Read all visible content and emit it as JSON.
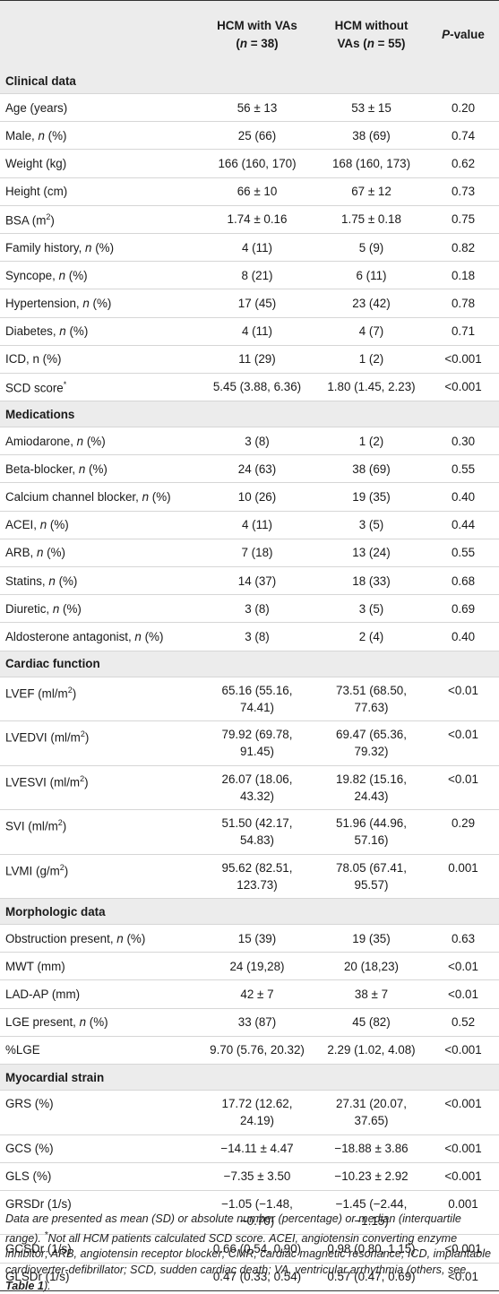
{
  "header": {
    "col1": "",
    "col2_line1": "HCM with VAs",
    "col2_line2_pre": "(",
    "col2_n": "n",
    "col2_line2_post": " = 38)",
    "col3_line1": "HCM without",
    "col3_line2_pre": "VAs (",
    "col3_n": "n",
    "col3_line2_post": " = 55)",
    "col4_p": "P",
    "col4_rest": "-value"
  },
  "sections": [
    {
      "title": "Clinical data",
      "rows": [
        {
          "label": "Age (years)",
          "a": "56 ± 13",
          "b": "53 ± 15",
          "p": "0.20"
        },
        {
          "label": "Male, ",
          "label_i": "n",
          "label_post": " (%)",
          "a": "25 (66)",
          "b": "38 (69)",
          "p": "0.74"
        },
        {
          "label": "Weight (kg)",
          "a": "166 (160, 170)",
          "b": "168 (160, 173)",
          "p": "0.62"
        },
        {
          "label": "Height (cm)",
          "a": "66 ± 10",
          "b": "67 ± 12",
          "p": "0.73"
        },
        {
          "label": "BSA (m",
          "label_sup": "2",
          "label_post": ")",
          "a": "1.74 ± 0.16",
          "b": "1.75 ± 0.18",
          "p": "0.75"
        },
        {
          "label": "Family history, ",
          "label_i": "n",
          "label_post": " (%)",
          "a": "4 (11)",
          "b": "5 (9)",
          "p": "0.82"
        },
        {
          "label": "Syncope, ",
          "label_i": "n",
          "label_post": " (%)",
          "a": "8 (21)",
          "b": "6 (11)",
          "p": "0.18"
        },
        {
          "label": "Hypertension, ",
          "label_i": "n",
          "label_post": " (%)",
          "a": "17 (45)",
          "b": "23 (42)",
          "p": "0.78"
        },
        {
          "label": "Diabetes, ",
          "label_i": "n",
          "label_post": " (%)",
          "a": "4 (11)",
          "b": "4 (7)",
          "p": "0.71"
        },
        {
          "label": "ICD, n (%)",
          "a": "11 (29)",
          "b": "1 (2)",
          "p": "<0.001"
        },
        {
          "label": "SCD score",
          "label_sup": "*",
          "a": "5.45 (3.88, 6.36)",
          "b": "1.80 (1.45, 2.23)",
          "p": "<0.001"
        }
      ]
    },
    {
      "title": "Medications",
      "rows": [
        {
          "label": "Amiodarone, ",
          "label_i": "n",
          "label_post": " (%)",
          "a": "3 (8)",
          "b": "1 (2)",
          "p": "0.30"
        },
        {
          "label": "Beta-blocker, ",
          "label_i": "n",
          "label_post": " (%)",
          "a": "24 (63)",
          "b": "38 (69)",
          "p": "0.55"
        },
        {
          "label": "Calcium channel blocker, ",
          "label_i": "n",
          "label_post": " (%)",
          "a": "10 (26)",
          "b": "19 (35)",
          "p": "0.40"
        },
        {
          "label": "ACEI, ",
          "label_i": "n",
          "label_post": " (%)",
          "a": "4 (11)",
          "b": "3 (5)",
          "p": "0.44"
        },
        {
          "label": "ARB, ",
          "label_i": "n",
          "label_post": " (%)",
          "a": "7 (18)",
          "b": "13 (24)",
          "p": "0.55"
        },
        {
          "label": "Statins, ",
          "label_i": "n",
          "label_post": " (%)",
          "a": "14 (37)",
          "b": "18 (33)",
          "p": "0.68"
        },
        {
          "label": "Diuretic, ",
          "label_i": "n",
          "label_post": " (%)",
          "a": "3 (8)",
          "b": "3 (5)",
          "p": "0.69"
        },
        {
          "label": "Aldosterone antagonist, ",
          "label_i": "n",
          "label_post": " (%)",
          "a": "3 (8)",
          "b": "2 (4)",
          "p": "0.40"
        }
      ]
    },
    {
      "title": "Cardiac function",
      "rows": [
        {
          "tall": true,
          "label": "LVEF (ml/m",
          "label_sup": "2",
          "label_post": ")",
          "a": "65.16 (55.16,",
          "a2": "74.41)",
          "b": "73.51 (68.50,",
          "b2": "77.63)",
          "p": "<0.01"
        },
        {
          "tall": true,
          "label": "LVEDVI (ml/m",
          "label_sup": "2",
          "label_post": ")",
          "a": "79.92 (69.78,",
          "a2": "91.45)",
          "b": "69.47 (65.36,",
          "b2": "79.32)",
          "p": "<0.01"
        },
        {
          "tall": true,
          "label": "LVESVI (ml/m",
          "label_sup": "2",
          "label_post": ")",
          "a": "26.07 (18.06,",
          "a2": "43.32)",
          "b": "19.82 (15.16,",
          "b2": "24.43)",
          "p": "<0.01"
        },
        {
          "tall": true,
          "label": "SVI (ml/m",
          "label_sup": "2",
          "label_post": ")",
          "a": "51.50 (42.17,",
          "a2": "54.83)",
          "b": "51.96 (44.96,",
          "b2": "57.16)",
          "p": "0.29"
        },
        {
          "tall": true,
          "label": "LVMI (g/m",
          "label_sup": "2",
          "label_post": ")",
          "a": "95.62 (82.51,",
          "a2": "123.73)",
          "b": "78.05 (67.41,",
          "b2": "95.57)",
          "p": "0.001"
        }
      ]
    },
    {
      "title": "Morphologic data",
      "rows": [
        {
          "label": "Obstruction present, ",
          "label_i": "n",
          "label_post": " (%)",
          "a": "15 (39)",
          "b": "19 (35)",
          "p": "0.63"
        },
        {
          "label": "MWT (mm)",
          "a": "24 (19,28)",
          "b": "20 (18,23)",
          "p": "<0.01"
        },
        {
          "label": "LAD-AP (mm)",
          "a": "42 ± 7",
          "b": "38 ± 7",
          "p": "<0.01"
        },
        {
          "label": "LGE present, ",
          "label_i": "n",
          "label_post": " (%)",
          "a": "33 (87)",
          "b": "45 (82)",
          "p": "0.52"
        },
        {
          "label": "%LGE",
          "a": "9.70 (5.76, 20.32)",
          "b": "2.29 (1.02, 4.08)",
          "p": "<0.001"
        }
      ]
    },
    {
      "title": "Myocardial strain",
      "rows": [
        {
          "tall": true,
          "label": "GRS (%)",
          "a": "17.72 (12.62,",
          "a2": "24.19)",
          "b": "27.31 (20.07,",
          "b2": "37.65)",
          "p": "<0.001"
        },
        {
          "label": "GCS (%)",
          "a": "−14.11 ± 4.47",
          "b": "−18.88 ± 3.86",
          "p": "<0.001"
        },
        {
          "label": "GLS (%)",
          "a": "−7.35 ± 3.50",
          "b": "−10.23 ± 2.92",
          "p": "<0.001"
        },
        {
          "tall": true,
          "label": "GRSDr (1/s)",
          "a": "−1.05 (−1.48,",
          "a2": "−0.70)",
          "b": "−1.45 (−2.44,",
          "b2": "−1.15)",
          "p": "0.001"
        },
        {
          "label": "GCSDr (1/s)",
          "a": "0.66 (0.54, 0.90)",
          "b": "0.98 (0.80, 1.15)",
          "p": "<0.001"
        },
        {
          "label": "GLSDr (1/s)",
          "a": "0.47 (0.33, 0.54)",
          "b": "0.57 (0.47, 0.69)",
          "p": "<0.01",
          "last": true
        }
      ]
    }
  ],
  "footnote": {
    "text1": "Data are presented as mean (SD) or absolute number (percentage) or median (interquartile range). ",
    "sup": "*",
    "text2": "Not all HCM patients calculated SCD score. ACEI, angiotensin converting enzyme inhibitor; ARB, angiotensin receptor blocker; CMR, cardiac magnetic resonance; ICD, implantable cardioverter-defibrillator; SCD, sudden cardiac death; VA, ventricular arrhythmia (others, see ",
    "ref": "Table 1",
    "text3": ")."
  }
}
